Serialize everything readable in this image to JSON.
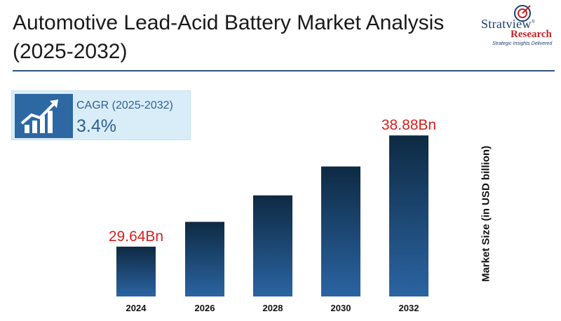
{
  "header": {
    "title_line1": "Automotive Lead-Acid Battery Market Analysis",
    "title_line2": "(2025-2032)"
  },
  "logo": {
    "word1": "Stratview",
    "word2": "Research",
    "tagline": "Strategic Insights Delivered",
    "registered": "®"
  },
  "cagr": {
    "label": "CAGR (2025-2032)",
    "value": "3.4%",
    "icon": "growth-chart-icon"
  },
  "colors": {
    "bar_top": "#0e2a43",
    "bar_bottom": "#2b64a2",
    "highlight_label": "#d81f1f",
    "accent": "#2f5380"
  },
  "chart_data": {
    "type": "bar",
    "categories": [
      "2024",
      "2026",
      "2028",
      "2030",
      "2032"
    ],
    "values": [
      29.64,
      31.7,
      33.9,
      36.3,
      38.88
    ],
    "data_labels": [
      "29.64Bn",
      "",
      "",
      "",
      "38.88Bn"
    ],
    "ylabel": "Market Size (in USD billion)",
    "xlabel": "",
    "ylim": [
      25.5,
      40.0
    ],
    "grid": false,
    "legend": "none"
  }
}
